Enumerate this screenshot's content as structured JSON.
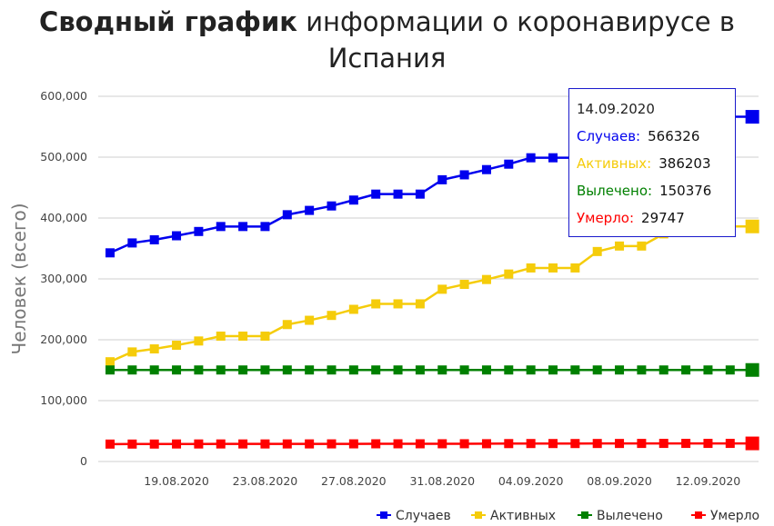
{
  "title": {
    "bold": "Сводный график",
    "rest": "информации о коронавирусе в Испания"
  },
  "colors": {
    "cases": "#0000ee",
    "active": "#f5cc0a",
    "recovered": "#008000",
    "deaths": "#ff0000",
    "grid": "#cfcfcf"
  },
  "tooltip": {
    "date": "14.09.2020",
    "rows": [
      {
        "label": "Случаев:",
        "value": "566326",
        "color": "#0000ee"
      },
      {
        "label": "Активных:",
        "value": "386203",
        "color": "#f5cc0a"
      },
      {
        "label": "Вылечено:",
        "value": "150376",
        "color": "#008000"
      },
      {
        "label": "Умерло:",
        "value": "29747",
        "color": "#ff0000"
      }
    ]
  },
  "chart_data": {
    "type": "line",
    "ylabel": "Человек (всего)",
    "ylim": [
      0,
      600000
    ],
    "yticks": [
      "0",
      "100,000",
      "200,000",
      "300,000",
      "400,000",
      "500,000",
      "600,000"
    ],
    "xticks": [
      "19.08.2020",
      "23.08.2020",
      "27.08.2020",
      "31.08.2020",
      "04.09.2020",
      "08.09.2020",
      "12.09.2020"
    ],
    "x": [
      "16.08.2020",
      "17.08.2020",
      "18.08.2020",
      "19.08.2020",
      "20.08.2020",
      "21.08.2020",
      "22.08.2020",
      "23.08.2020",
      "24.08.2020",
      "25.08.2020",
      "26.08.2020",
      "27.08.2020",
      "28.08.2020",
      "29.08.2020",
      "30.08.2020",
      "31.08.2020",
      "01.09.2020",
      "02.09.2020",
      "03.09.2020",
      "04.09.2020",
      "05.09.2020",
      "06.09.2020",
      "07.09.2020",
      "08.09.2020",
      "09.09.2020",
      "10.09.2020",
      "11.09.2020",
      "12.09.2020",
      "13.09.2020",
      "14.09.2020"
    ],
    "grid": true,
    "legend_position": "bottom-right",
    "series": [
      {
        "name": "Случаев",
        "key": "cases",
        "values": [
          342813,
          359082,
          364196,
          370867,
          377906,
          386054,
          386054,
          386054,
          405436,
          412553,
          419849,
          429507,
          439286,
          439286,
          439286,
          462858,
          470973,
          479554,
          488513,
          498989,
          498989,
          498989,
          525549,
          534513,
          543379,
          554143,
          566326,
          566326,
          566326,
          566326
        ]
      },
      {
        "name": "Активных",
        "key": "active",
        "values": [
          163900,
          180000,
          185000,
          191000,
          198000,
          206000,
          206000,
          206000,
          225000,
          232000,
          240000,
          250000,
          259000,
          259000,
          259000,
          283000,
          291000,
          299000,
          308000,
          318000,
          318000,
          318000,
          345000,
          354000,
          354000,
          374000,
          386203,
          386203,
          386203,
          386203
        ]
      },
      {
        "name": "Вылечено",
        "key": "recovered",
        "values": [
          150376,
          150376,
          150376,
          150376,
          150376,
          150376,
          150376,
          150376,
          150376,
          150376,
          150376,
          150376,
          150376,
          150376,
          150376,
          150376,
          150376,
          150376,
          150376,
          150376,
          150376,
          150376,
          150376,
          150376,
          150376,
          150376,
          150376,
          150376,
          150376,
          150376
        ]
      },
      {
        "name": "Умерло",
        "key": "deaths",
        "values": [
          28617,
          28646,
          28670,
          28797,
          28813,
          28838,
          28838,
          28838,
          28872,
          28924,
          28971,
          29011,
          29094,
          29094,
          29094,
          29152,
          29194,
          29234,
          29418,
          29516,
          29516,
          29516,
          29594,
          29628,
          29699,
          29747,
          29747,
          29747,
          29747,
          29747
        ]
      }
    ]
  }
}
